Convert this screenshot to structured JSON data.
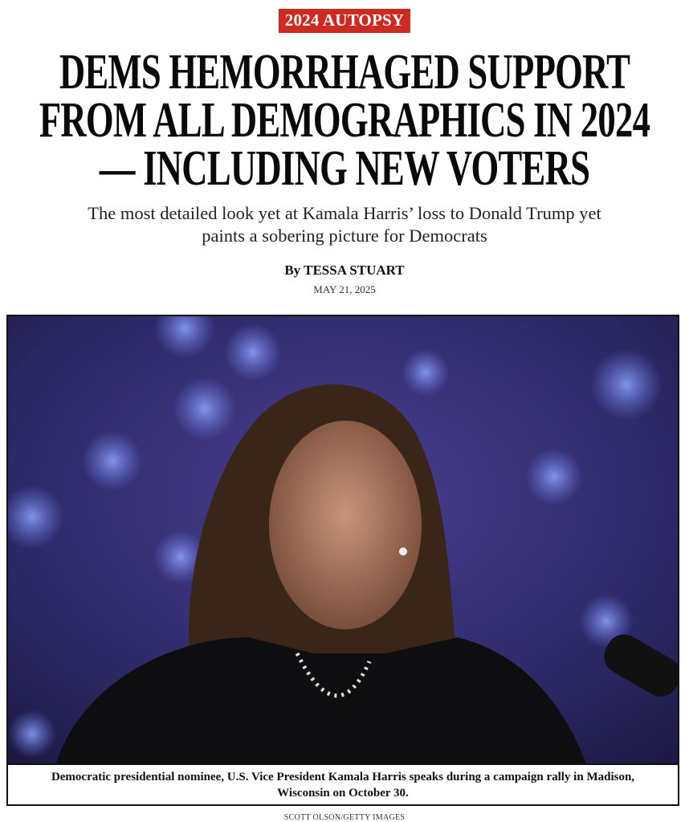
{
  "kicker": "2024 AUTOPSY",
  "headline": "DEMS HEMORRHAGED SUPPORT FROM ALL DEMOGRAPHICS IN 2024 — INCLUDING NEW VOTERS",
  "dek": "The most detailed look yet at Kamala Harris’ loss to Donald Trump yet paints a sobering picture for Democrats",
  "byline": "By TESSA STUART",
  "date": "MAY 21, 2025",
  "photo": {
    "caption": "Democratic presidential nominee, U.S. Vice President Kamala Harris speaks during a campaign rally in Madison, Wisconsin on October 30.",
    "credit": "SCOTT OLSON/GETTY IMAGES"
  }
}
